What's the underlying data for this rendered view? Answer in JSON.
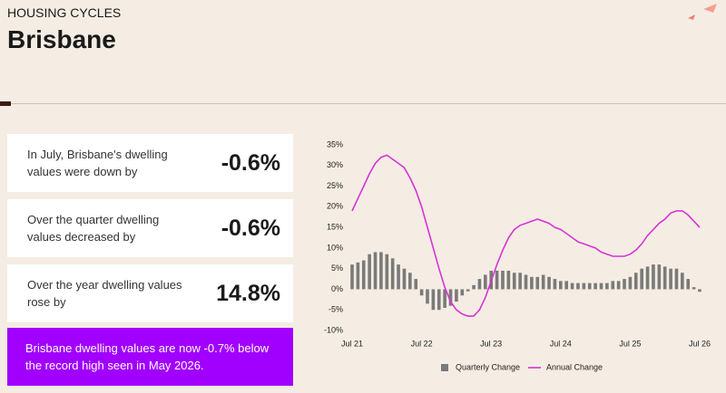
{
  "header": {
    "eyebrow": "HOUSING CYCLES",
    "title": "Brisbane"
  },
  "cards": [
    {
      "text": "In July, Brisbane's dwelling values were down by",
      "value": "-0.6%"
    },
    {
      "text": "Over the quarter dwelling values decreased by",
      "value": "-0.6%"
    },
    {
      "text": "Over the year dwelling values rose by",
      "value": "14.8%"
    }
  ],
  "callout": "Brisbane dwelling values are now -0.7% below the record high seen in May 2026.",
  "chart_data": {
    "type": "combo",
    "categories": [
      "Jul 21",
      null,
      null,
      null,
      null,
      null,
      null,
      null,
      null,
      null,
      null,
      null,
      "Jul 22",
      null,
      null,
      null,
      null,
      null,
      null,
      null,
      null,
      null,
      null,
      null,
      "Jul 23",
      null,
      null,
      null,
      null,
      null,
      null,
      null,
      null,
      null,
      null,
      null,
      "Jul 24",
      null,
      null,
      null,
      null,
      null,
      null,
      null,
      null,
      null,
      null,
      null,
      "Jul 25",
      null,
      null,
      null,
      null,
      null,
      null,
      null,
      null,
      null,
      null,
      null,
      "Jul 26"
    ],
    "series": [
      {
        "name": "Quarterly Change",
        "type": "bar",
        "color": "#7a7a7a",
        "values": [
          6,
          6.5,
          7,
          8.5,
          9,
          9,
          8.5,
          7.5,
          6,
          5,
          4,
          2.5,
          -1.5,
          -3.5,
          -5,
          -5,
          -4.5,
          -4,
          -3,
          -1.5,
          -0.5,
          1,
          2.5,
          3.5,
          4.5,
          4.5,
          4.5,
          4.5,
          4,
          4,
          3.5,
          3,
          3,
          3.5,
          3,
          2.5,
          2,
          2,
          1.5,
          1.5,
          1.5,
          1.5,
          1.5,
          1.5,
          1.5,
          2,
          2,
          2.5,
          3,
          4,
          5,
          5.5,
          6,
          6,
          5.5,
          5,
          5,
          4,
          2.5,
          0.5,
          -0.6
        ]
      },
      {
        "name": "Annual Change",
        "type": "line",
        "color": "#d633d6",
        "values": [
          19,
          22,
          25,
          28,
          30.5,
          32,
          32.5,
          31.5,
          30.5,
          29.5,
          27,
          24,
          20,
          15,
          10,
          5,
          0.5,
          -3,
          -5,
          -6,
          -6.5,
          -6.5,
          -5,
          -2,
          2,
          6,
          9.5,
          12.5,
          14.5,
          15.5,
          16,
          16.5,
          17,
          16.5,
          16,
          15,
          14.5,
          13.5,
          12.5,
          11.5,
          11,
          10.5,
          10,
          9,
          8.5,
          8,
          8,
          8,
          8.5,
          9.5,
          11,
          13,
          14.5,
          16,
          17,
          18.5,
          19,
          19,
          18,
          16.5,
          15
        ]
      }
    ],
    "ylim": [
      -10,
      35
    ],
    "yticks": [
      {
        "value": 35,
        "label": "35%"
      },
      {
        "value": 30,
        "label": "30%"
      },
      {
        "value": 25,
        "label": "25%"
      },
      {
        "value": 20,
        "label": "20%"
      },
      {
        "value": 15,
        "label": "15%"
      },
      {
        "value": 10,
        "label": "10%"
      },
      {
        "value": 5,
        "label": "5%"
      },
      {
        "value": 0,
        "label": "0%"
      },
      {
        "value": -5,
        "label": "-5%"
      },
      {
        "value": -10,
        "label": "-10%"
      }
    ],
    "legend": "bottom"
  }
}
